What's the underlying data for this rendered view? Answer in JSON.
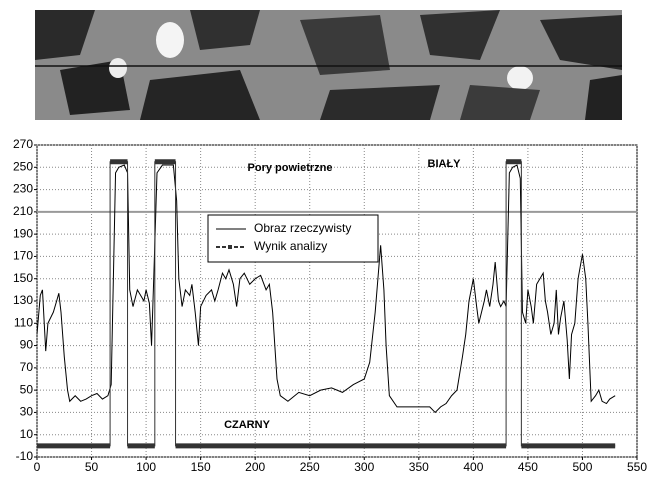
{
  "chart_data": {
    "type": "line",
    "annotations": [
      "Pory powietrzne",
      "BIAŁY",
      "CZARNY"
    ],
    "xlim": [
      0,
      550
    ],
    "xticks": [
      0,
      50,
      100,
      150,
      200,
      250,
      300,
      350,
      400,
      450,
      500,
      550
    ],
    "ylim": [
      -10,
      270
    ],
    "yticks": [
      -10,
      10,
      30,
      50,
      70,
      90,
      110,
      130,
      150,
      170,
      190,
      210,
      230,
      250,
      270
    ],
    "grid": true,
    "reference_line": 210,
    "reference_color": "#999999",
    "series": [
      {
        "name": "Obraz rzeczywisty",
        "color": "#000000",
        "x": [
          0,
          3,
          5,
          8,
          10,
          15,
          18,
          20,
          22,
          25,
          28,
          30,
          35,
          40,
          45,
          50,
          55,
          60,
          65,
          68,
          70,
          72,
          75,
          80,
          83,
          85,
          88,
          92,
          95,
          98,
          100,
          103,
          105,
          107,
          110,
          115,
          125,
          128,
          130,
          133,
          136,
          140,
          142,
          145,
          148,
          150,
          155,
          160,
          163,
          166,
          170,
          173,
          176,
          180,
          183,
          186,
          190,
          195,
          200,
          205,
          210,
          213,
          216,
          220,
          223,
          230,
          240,
          250,
          260,
          270,
          280,
          290,
          300,
          305,
          310,
          315,
          318,
          320,
          323,
          330,
          340,
          350,
          360,
          365,
          370,
          375,
          380,
          385,
          390,
          393,
          396,
          400,
          403,
          405,
          410,
          412,
          415,
          418,
          420,
          423,
          425,
          428,
          430,
          433,
          436,
          440,
          443,
          445,
          448,
          450,
          453,
          455,
          458,
          461,
          464,
          466,
          468,
          471,
          474,
          476,
          478,
          480,
          483,
          486,
          488,
          490,
          493,
          496,
          500,
          503,
          505,
          508,
          512,
          515,
          518,
          522,
          525,
          530
        ],
        "values": [
          100,
          135,
          140,
          85,
          110,
          120,
          130,
          137,
          120,
          80,
          50,
          40,
          45,
          40,
          42,
          45,
          47,
          42,
          45,
          55,
          150,
          245,
          250,
          252,
          245,
          140,
          125,
          140,
          135,
          130,
          140,
          128,
          90,
          150,
          245,
          252,
          252,
          220,
          150,
          125,
          140,
          135,
          145,
          120,
          90,
          125,
          135,
          140,
          130,
          140,
          155,
          150,
          158,
          145,
          125,
          150,
          155,
          145,
          150,
          153,
          140,
          145,
          120,
          60,
          45,
          40,
          48,
          45,
          50,
          52,
          48,
          55,
          60,
          75,
          120,
          180,
          140,
          90,
          45,
          35,
          35,
          35,
          35,
          30,
          35,
          38,
          45,
          50,
          80,
          100,
          130,
          150,
          125,
          110,
          130,
          140,
          125,
          145,
          165,
          130,
          125,
          130,
          125,
          245,
          250,
          252,
          240,
          120,
          110,
          140,
          125,
          110,
          145,
          150,
          155,
          130,
          120,
          100,
          110,
          140,
          100,
          115,
          130,
          95,
          60,
          100,
          110,
          150,
          172,
          150,
          110,
          40,
          45,
          50,
          40,
          38,
          42,
          45
        ]
      },
      {
        "name": "Wynik analizy",
        "color": "#333333",
        "x": [
          0,
          67,
          67,
          83,
          83,
          108,
          108,
          127,
          127,
          430,
          430,
          444,
          444,
          530
        ],
        "values": [
          0,
          0,
          255,
          255,
          0,
          0,
          255,
          255,
          0,
          0,
          255,
          255,
          0,
          0
        ]
      }
    ]
  }
}
